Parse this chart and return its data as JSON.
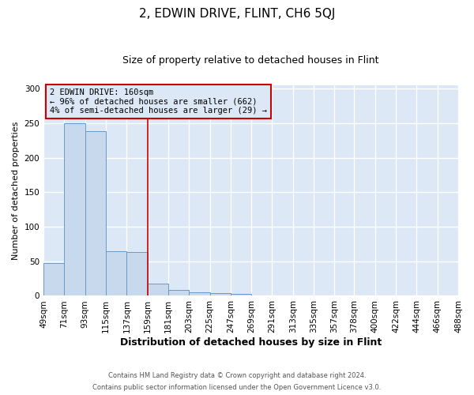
{
  "title": "2, EDWIN DRIVE, FLINT, CH6 5QJ",
  "subtitle": "Size of property relative to detached houses in Flint",
  "xlabel": "Distribution of detached houses by size in Flint",
  "ylabel": "Number of detached properties",
  "footnote1": "Contains HM Land Registry data © Crown copyright and database right 2024.",
  "footnote2": "Contains public sector information licensed under the Open Government Licence v3.0.",
  "bin_edges": [
    49,
    71,
    93,
    115,
    137,
    159,
    181,
    203,
    225,
    247,
    269,
    291,
    313,
    335,
    357,
    378,
    400,
    422,
    444,
    466,
    488
  ],
  "bin_labels": [
    "49sqm",
    "71sqm",
    "93sqm",
    "115sqm",
    "137sqm",
    "159sqm",
    "181sqm",
    "203sqm",
    "225sqm",
    "247sqm",
    "269sqm",
    "291sqm",
    "313sqm",
    "335sqm",
    "357sqm",
    "378sqm",
    "400sqm",
    "422sqm",
    "444sqm",
    "466sqm",
    "488sqm"
  ],
  "counts": [
    47,
    250,
    238,
    65,
    63,
    18,
    9,
    5,
    4,
    3,
    0,
    0,
    0,
    0,
    0,
    0,
    0,
    0,
    0,
    0
  ],
  "bar_color": "#c8d9ee",
  "bar_edge_color": "#6699cc",
  "vline_x": 159,
  "vline_color": "#cc0000",
  "annotation_title": "2 EDWIN DRIVE: 160sqm",
  "annotation_line1": "← 96% of detached houses are smaller (662)",
  "annotation_line2": "4% of semi-detached houses are larger (29) →",
  "annotation_box_color": "#cc0000",
  "ylim": [
    0,
    305
  ],
  "yticks": [
    0,
    50,
    100,
    150,
    200,
    250,
    300
  ],
  "plot_bg_color": "#dce8f5",
  "fig_bg_color": "#ffffff",
  "grid_color": "#ffffff",
  "title_fontsize": 11,
  "subtitle_fontsize": 9
}
